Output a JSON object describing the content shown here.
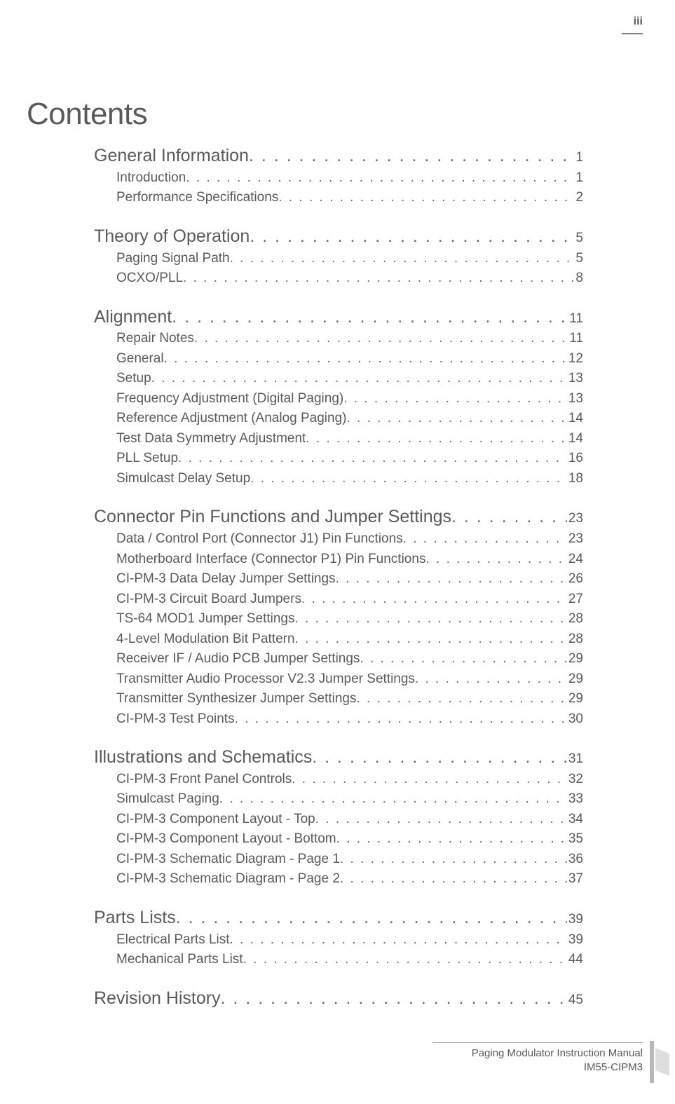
{
  "page_number_top": "iii",
  "title": "Contents",
  "footer": {
    "line1": "Paging Modulator Instruction Manual",
    "line2": "IM55-CIPM3"
  },
  "colors": {
    "text": "#5a5a5a",
    "background": "#ffffff",
    "rule": "#808080",
    "dots": "#6a6a6a"
  },
  "typography": {
    "title_fontsize_pt": 33,
    "lvl1_fontsize_pt": 19,
    "lvl2_fontsize_pt": 14,
    "footer_fontsize_pt": 11,
    "font_family": "Arial"
  },
  "toc": [
    {
      "label": "General Information",
      "page": "1",
      "children": [
        {
          "label": "Introduction",
          "page": "1"
        },
        {
          "label": "Performance Specifications",
          "page": "2"
        }
      ]
    },
    {
      "label": "Theory of Operation",
      "page": "5",
      "children": [
        {
          "label": "Paging Signal Path",
          "page": "5"
        },
        {
          "label": "OCXO/PLL",
          "page": "8"
        }
      ]
    },
    {
      "label": "Alignment",
      "page": "11",
      "children": [
        {
          "label": "Repair Notes",
          "page": "11"
        },
        {
          "label": "General",
          "page": "12"
        },
        {
          "label": "Setup",
          "page": "13"
        },
        {
          "label": "Frequency Adjustment (Digital Paging)",
          "page": "13"
        },
        {
          "label": "Reference Adjustment (Analog Paging)",
          "page": "14"
        },
        {
          "label": "Test Data Symmetry Adjustment",
          "page": "14"
        },
        {
          "label": "PLL Setup",
          "page": "16"
        },
        {
          "label": "Simulcast Delay Setup",
          "page": "18"
        }
      ]
    },
    {
      "label": "Connector Pin Functions and Jumper Settings",
      "page": "23",
      "children": [
        {
          "label": "Data / Control Port (Connector J1) Pin Functions",
          "page": "23"
        },
        {
          "label": "Motherboard Interface (Connector P1) Pin Functions",
          "page": "24"
        },
        {
          "label": "CI-PM-3 Data Delay Jumper Settings",
          "page": "26"
        },
        {
          "label": "CI-PM-3 Circuit Board Jumpers",
          "page": "27"
        },
        {
          "label": "TS-64 MOD1 Jumper Settings",
          "page": "28"
        },
        {
          "label": "4-Level Modulation Bit Pattern",
          "page": "28"
        },
        {
          "label": "Receiver IF / Audio PCB Jumper Settings",
          "page": "29"
        },
        {
          "label": "Transmitter Audio Processor V2.3 Jumper Settings",
          "page": "29"
        },
        {
          "label": "Transmitter Synthesizer Jumper Settings",
          "page": "29"
        },
        {
          "label": "CI-PM-3 Test Points",
          "page": "30"
        }
      ]
    },
    {
      "label": "Illustrations and Schematics",
      "page": "31",
      "children": [
        {
          "label": "CI-PM-3  Front Panel Controls",
          "page": "32"
        },
        {
          "label": "Simulcast Paging",
          "page": "33"
        },
        {
          "label": "CI-PM-3 Component Layout - Top",
          "page": "34"
        },
        {
          "label": "CI-PM-3 Component Layout - Bottom",
          "page": "35"
        },
        {
          "label": "CI-PM-3 Schematic Diagram - Page 1",
          "page": "36"
        },
        {
          "label": "CI-PM-3 Schematic Diagram - Page 2",
          "page": "37"
        }
      ]
    },
    {
      "label": "Parts Lists",
      "page": "39",
      "children": [
        {
          "label": "Electrical Parts List",
          "page": "39"
        },
        {
          "label": "Mechanical Parts List",
          "page": "44"
        }
      ]
    },
    {
      "label": "Revision History",
      "page": "45",
      "children": []
    }
  ]
}
